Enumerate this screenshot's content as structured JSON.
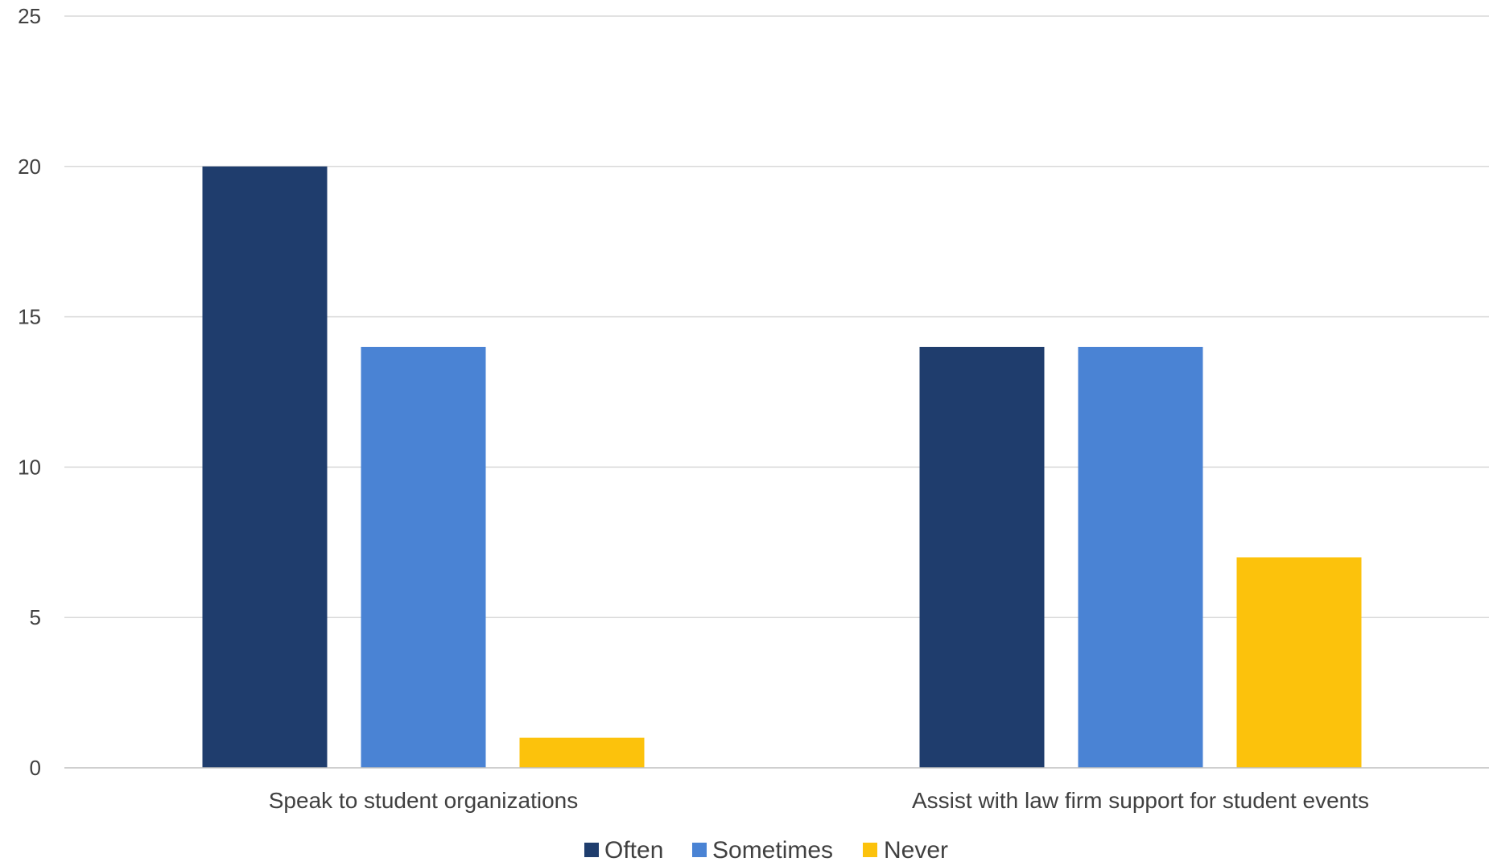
{
  "chart_data": {
    "type": "bar",
    "categories": [
      "Speak to student organizations",
      "Assist with law firm support for student events"
    ],
    "series": [
      {
        "name": "Often",
        "values": [
          20,
          14
        ],
        "color": "#1f3d6d"
      },
      {
        "name": "Sometimes",
        "values": [
          14,
          14
        ],
        "color": "#4a83d4"
      },
      {
        "name": "Never",
        "values": [
          1,
          7
        ],
        "color": "#fcc20c"
      }
    ],
    "ylim": [
      0,
      25
    ],
    "yticks": [
      "0",
      "5",
      "10",
      "15",
      "20",
      "25"
    ],
    "grid": true,
    "legend_position": "bottom"
  }
}
